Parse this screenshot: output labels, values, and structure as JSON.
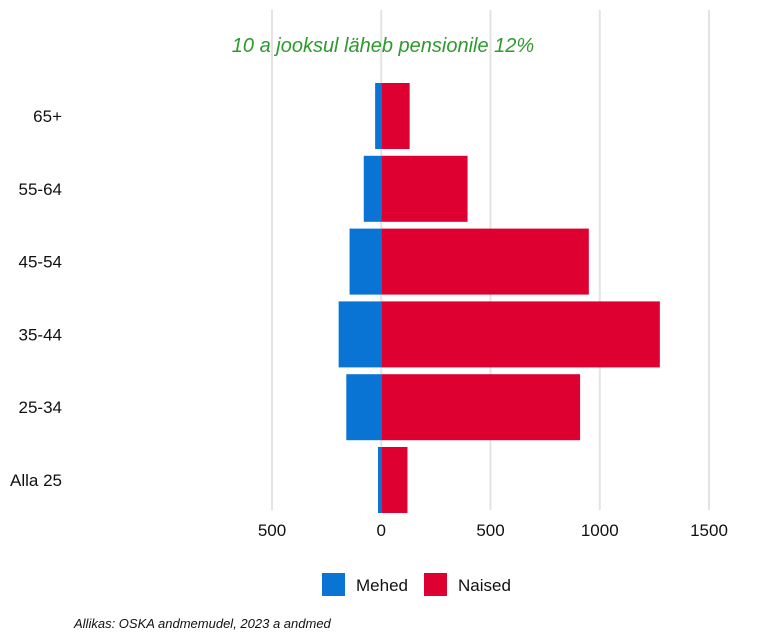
{
  "chart_data": {
    "type": "bar",
    "orientation": "horizontal",
    "layout": "population-pyramid",
    "title": "10 a jooksul läheb pensionile 12%",
    "title_color": "#2e9a2e",
    "categories": [
      "Alla 25",
      "25-34",
      "35-44",
      "45-54",
      "55-64",
      "65+"
    ],
    "series": [
      {
        "name": "Mehed",
        "color": "#0a74d4",
        "direction": "left",
        "values": [
          15,
          160,
          195,
          145,
          80,
          28
        ]
      },
      {
        "name": "Naised",
        "color": "#dd0030",
        "direction": "right",
        "values": [
          120,
          910,
          1275,
          950,
          395,
          130
        ]
      }
    ],
    "xlim": [
      -500,
      1500
    ],
    "x_ticks": [
      -500,
      0,
      500,
      1000,
      1500
    ],
    "x_tick_labels": [
      "500",
      "0",
      "500",
      "1000",
      "1500"
    ],
    "grid": "vertical",
    "legend_position": "bottom"
  },
  "source": "Allikas: OSKA andmemudel, 2023 a andmed"
}
